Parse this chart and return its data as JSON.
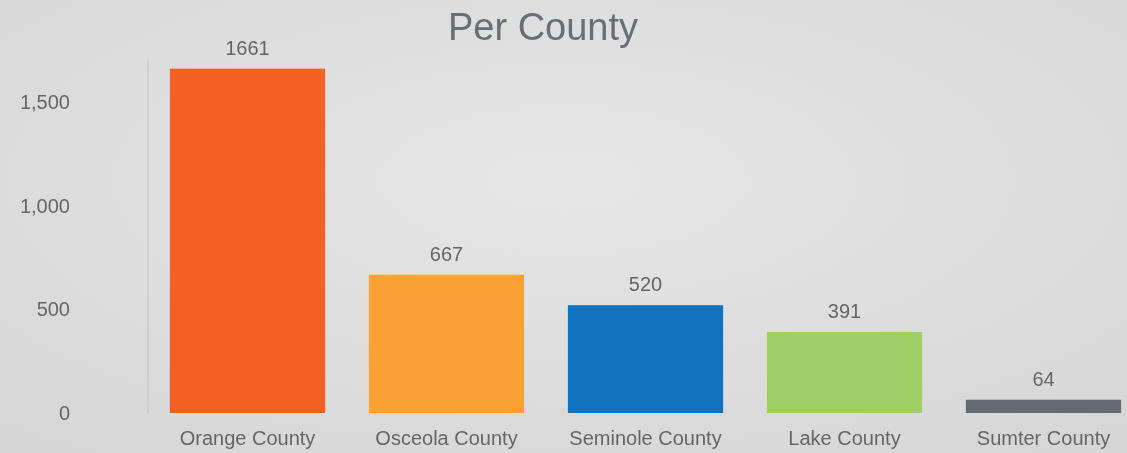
{
  "chart_data": {
    "type": "bar",
    "title": "Per County",
    "categories": [
      "Orange County",
      "Osceola County",
      "Seminole County",
      "Lake County",
      "Sumter County"
    ],
    "values": [
      1661,
      667,
      520,
      391,
      64
    ],
    "colors": [
      "#f26122",
      "#f9a233",
      "#1172bf",
      "#a0cf67",
      "#636a73"
    ],
    "ylim": [
      0,
      1700
    ],
    "yticks": [
      0,
      {
        "value": 500,
        "label": "500"
      },
      {
        "value": 1000,
        "label": "1,000"
      },
      {
        "value": 1500,
        "label": "1,500"
      }
    ],
    "data_labels": true,
    "grid": false
  }
}
